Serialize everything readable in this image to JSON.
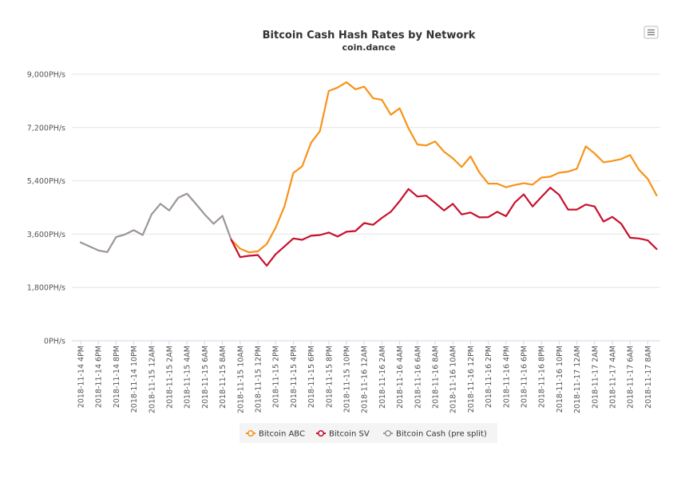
{
  "chart_data": {
    "type": "line",
    "title": "Bitcoin Cash Hash Rates by Network",
    "subtitle": "coin.dance",
    "xlabel": "",
    "ylabel": "",
    "ylim": [
      0,
      9000
    ],
    "yticks": [
      "0PH/s",
      "1,800PH/s",
      "3,600PH/s",
      "5,400PH/s",
      "7,200PH/s",
      "9,000PH/s"
    ],
    "ytick_values": [
      0,
      1800,
      3600,
      5400,
      7200,
      9000
    ],
    "grid": true,
    "legend_position": "bottom-center",
    "x_tick_labels": [
      "2018-11-14 4PM",
      "2018-11-14 6PM",
      "2018-11-14 8PM",
      "2018-11-14 10PM",
      "2018-11-15 12AM",
      "2018-11-15 2AM",
      "2018-11-15 4AM",
      "2018-11-15 6AM",
      "2018-11-15 8AM",
      "2018-11-15 10AM",
      "2018-11-15 12PM",
      "2018-11-15 2PM",
      "2018-11-15 4PM",
      "2018-11-15 6PM",
      "2018-11-15 8PM",
      "2018-11-15 10PM",
      "2018-11-16 12AM",
      "2018-11-16 2AM",
      "2018-11-16 4AM",
      "2018-11-16 6AM",
      "2018-11-16 8AM",
      "2018-11-16 10AM",
      "2018-11-16 12PM",
      "2018-11-16 2PM",
      "2018-11-16 4PM",
      "2018-11-16 6PM",
      "2018-11-16 8PM",
      "2018-11-16 10PM",
      "2018-11-17 12AM",
      "2018-11-17 2AM",
      "2018-11-17 4AM",
      "2018-11-17 6AM",
      "2018-11-17 8AM"
    ],
    "x_interval": "hourly, 2018-11-14 4PM to 2018-11-17 9AM",
    "series": [
      {
        "name": "Bitcoin ABC",
        "color": "#f7931a",
        "start_index": 17,
        "values": [
          3410,
          3110,
          2985,
          3020,
          3265,
          3815,
          4535,
          5665,
          5890,
          6685,
          7080,
          8435,
          8550,
          8730,
          8490,
          8580,
          8190,
          8135,
          7630,
          7850,
          7170,
          6630,
          6595,
          6730,
          6385,
          6160,
          5865,
          6225,
          5680,
          5305,
          5305,
          5185,
          5260,
          5320,
          5270,
          5510,
          5540,
          5675,
          5710,
          5810,
          6565,
          6325,
          6025,
          6070,
          6135,
          6270,
          5775,
          5465,
          4905
        ]
      },
      {
        "name": "Bitcoin SV",
        "color": "#c8102e",
        "start_index": 17,
        "values": [
          3410,
          2825,
          2870,
          2895,
          2535,
          2920,
          3185,
          3455,
          3410,
          3545,
          3570,
          3655,
          3520,
          3680,
          3705,
          3975,
          3915,
          4150,
          4355,
          4715,
          5125,
          4870,
          4900,
          4655,
          4400,
          4625,
          4265,
          4330,
          4165,
          4175,
          4355,
          4205,
          4670,
          4945,
          4535,
          4855,
          5170,
          4925,
          4430,
          4430,
          4600,
          4535,
          4025,
          4185,
          3950,
          3480,
          3455,
          3390,
          3095
        ]
      },
      {
        "name": "Bitcoin Cash (pre split)",
        "color": "#9c9694",
        "start_index": 0,
        "values": [
          3320,
          3185,
          3050,
          2995,
          3500,
          3590,
          3735,
          3570,
          4265,
          4625,
          4400,
          4825,
          4970,
          4625,
          4265,
          3950,
          4220,
          3410
        ]
      }
    ]
  },
  "menu_icon": "hamburger-menu-icon"
}
